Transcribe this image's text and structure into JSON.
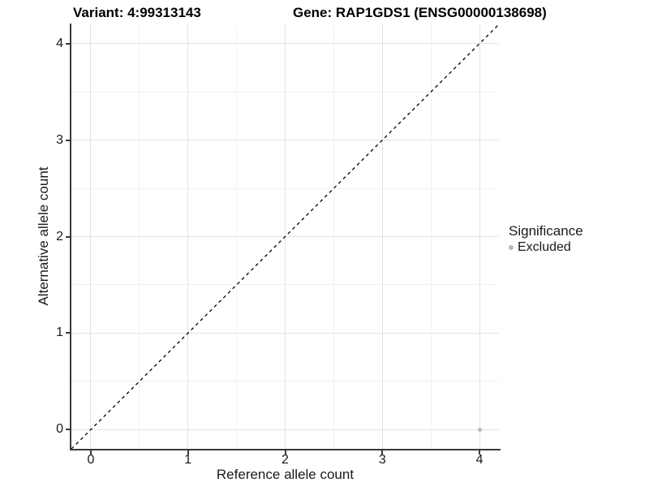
{
  "chart_data": {
    "type": "scatter",
    "title_left": "Variant: 4:99313143",
    "title_right": "Gene: RAP1GDS1 (ENSG00000138698)",
    "xlabel": "Reference allele count",
    "ylabel": "Alternative allele count",
    "xlim": [
      -0.2,
      4.2
    ],
    "ylim": [
      -0.2,
      4.2
    ],
    "x_ticks": [
      0,
      1,
      2,
      3,
      4
    ],
    "y_ticks": [
      0,
      1,
      2,
      3,
      4
    ],
    "x_minor_ticks": [
      0.5,
      1.5,
      2.5,
      3.5
    ],
    "y_minor_ticks": [
      0.5,
      1.5,
      2.5,
      3.5
    ],
    "grid": "major and minor gridlines on white background",
    "reference_line": {
      "kind": "identity y=x",
      "style": "dashed",
      "color": "#000000"
    },
    "points": [
      {
        "x": 4,
        "y": 0,
        "significance": "Excluded",
        "color": "#b8b8b8"
      }
    ],
    "legend": {
      "title": "Significance",
      "position": "right",
      "items": [
        {
          "label": "Excluded",
          "color": "#b8b8b8"
        }
      ]
    },
    "colors": {
      "grid_major": "#e3e3e3",
      "grid_minor": "#f1f1f1",
      "axis_line": "#3a3a3a",
      "tick_text": "#1a1a1a",
      "title_text": "#000000"
    }
  }
}
